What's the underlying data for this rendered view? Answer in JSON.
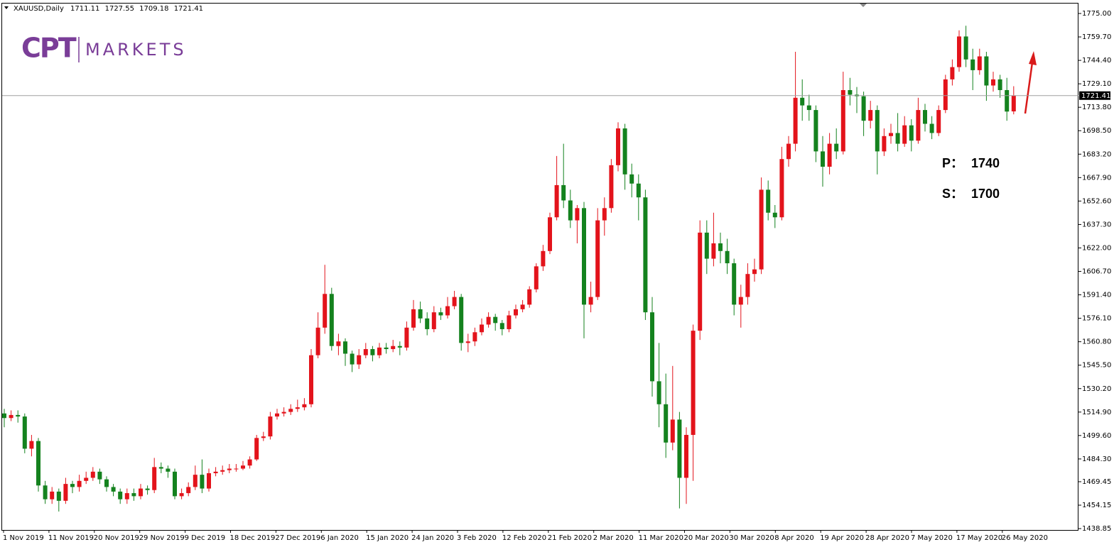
{
  "chart_data": {
    "type": "candlestick",
    "symbol": "XAUUSD,Daily",
    "logo": {
      "mark": "CPT",
      "name": "MARKETS"
    },
    "up_color": "#e3131b",
    "down_color": "#14821e",
    "ylim": [
      1437.96,
      1781.48
    ],
    "yticks": [
      {
        "value": 1775.0,
        "label": "1775.00"
      },
      {
        "value": 1759.7,
        "label": "1759.70"
      },
      {
        "value": 1744.4,
        "label": "1744.40"
      },
      {
        "value": 1729.1,
        "label": "1729.10"
      },
      {
        "value": 1713.8,
        "label": "1713.80"
      },
      {
        "value": 1698.5,
        "label": "1698.50"
      },
      {
        "value": 1683.2,
        "label": "1683.20"
      },
      {
        "value": 1667.9,
        "label": "1667.90"
      },
      {
        "value": 1652.6,
        "label": "1652.60"
      },
      {
        "value": 1637.3,
        "label": "1637.30"
      },
      {
        "value": 1622.0,
        "label": "1622.00"
      },
      {
        "value": 1606.7,
        "label": "1606.70"
      },
      {
        "value": 1591.4,
        "label": "1591.40"
      },
      {
        "value": 1576.1,
        "label": "1576.10"
      },
      {
        "value": 1560.8,
        "label": "1560.80"
      },
      {
        "value": 1545.5,
        "label": "1545.50"
      },
      {
        "value": 1530.2,
        "label": "1530.20"
      },
      {
        "value": 1514.9,
        "label": "1514.90"
      },
      {
        "value": 1499.6,
        "label": "1499.60"
      },
      {
        "value": 1484.3,
        "label": "1484.30"
      },
      {
        "value": 1469.45,
        "label": "1469.45"
      },
      {
        "value": 1454.15,
        "label": "1454.15"
      },
      {
        "value": 1438.85,
        "label": "1438.85"
      }
    ],
    "x_labels": [
      "1 Nov 2019",
      "11 Nov 2019",
      "20 Nov 2019",
      "29 Nov 2019",
      "9 Dec 2019",
      "18 Dec 2019",
      "27 Dec 2019",
      "6 Jan 2020",
      "15 Jan 2020",
      "24 Jan 2020",
      "3 Feb 2020",
      "12 Feb 2020",
      "21 Feb 2020",
      "2 Mar 2020",
      "11 Mar 2020",
      "20 Mar 2020",
      "30 Mar 2020",
      "8 Apr 2020",
      "19 Apr 2020",
      "28 Apr 2020",
      "7 May 2020",
      "17 May 2020",
      "26 May 2020"
    ],
    "annotations": [
      {
        "label": "P：",
        "value": 1740
      },
      {
        "label": "S：",
        "value": 1700
      }
    ],
    "candles": [
      [
        1514,
        1517,
        1505,
        1511
      ],
      [
        1511,
        1516,
        1509,
        1513
      ],
      [
        1513,
        1516,
        1508,
        1512
      ],
      [
        1512,
        1514,
        1488,
        1491
      ],
      [
        1491,
        1500,
        1486,
        1496
      ],
      [
        1496,
        1498,
        1463,
        1467
      ],
      [
        1467,
        1470,
        1455,
        1458
      ],
      [
        1458,
        1466,
        1455,
        1463
      ],
      [
        1463,
        1465,
        1450,
        1457
      ],
      [
        1457,
        1472,
        1455,
        1468
      ],
      [
        1468,
        1470,
        1462,
        1466
      ],
      [
        1466,
        1474,
        1463,
        1470
      ],
      [
        1470,
        1476,
        1468,
        1472
      ],
      [
        1472,
        1479,
        1470,
        1476
      ],
      [
        1476,
        1478,
        1468,
        1471
      ],
      [
        1471,
        1473,
        1463,
        1466
      ],
      [
        1466,
        1468,
        1460,
        1463
      ],
      [
        1463,
        1465,
        1455,
        1458
      ],
      [
        1458,
        1465,
        1455,
        1462
      ],
      [
        1462,
        1465,
        1457,
        1460
      ],
      [
        1460,
        1468,
        1458,
        1465
      ],
      [
        1465,
        1467,
        1461,
        1464
      ],
      [
        1464,
        1485,
        1462,
        1479
      ],
      [
        1479,
        1482,
        1475,
        1478
      ],
      [
        1478,
        1480,
        1472,
        1476
      ],
      [
        1476,
        1478,
        1458,
        1460
      ],
      [
        1460,
        1465,
        1458,
        1462
      ],
      [
        1462,
        1469,
        1460,
        1466
      ],
      [
        1466,
        1480,
        1464,
        1474
      ],
      [
        1474,
        1484,
        1462,
        1465
      ],
      [
        1465,
        1478,
        1463,
        1475
      ],
      [
        1475,
        1479,
        1473,
        1476
      ],
      [
        1476,
        1480,
        1474,
        1477
      ],
      [
        1477,
        1481,
        1475,
        1478
      ],
      [
        1478,
        1481,
        1476,
        1478
      ],
      [
        1478,
        1483,
        1477,
        1480
      ],
      [
        1480,
        1486,
        1478,
        1484
      ],
      [
        1484,
        1500,
        1483,
        1498
      ],
      [
        1498,
        1502,
        1496,
        1499
      ],
      [
        1499,
        1515,
        1497,
        1512
      ],
      [
        1512,
        1517,
        1510,
        1514
      ],
      [
        1514,
        1518,
        1512,
        1515
      ],
      [
        1515,
        1520,
        1513,
        1517
      ],
      [
        1517,
        1523,
        1515,
        1518
      ],
      [
        1518,
        1524,
        1516,
        1520
      ],
      [
        1520,
        1556,
        1518,
        1552
      ],
      [
        1552,
        1580,
        1550,
        1570
      ],
      [
        1570,
        1611,
        1566,
        1592
      ],
      [
        1592,
        1596,
        1555,
        1558
      ],
      [
        1558,
        1566,
        1552,
        1561
      ],
      [
        1561,
        1563,
        1545,
        1553
      ],
      [
        1553,
        1555,
        1541,
        1546
      ],
      [
        1546,
        1556,
        1543,
        1552
      ],
      [
        1552,
        1560,
        1550,
        1556
      ],
      [
        1556,
        1558,
        1548,
        1552
      ],
      [
        1552,
        1560,
        1550,
        1557
      ],
      [
        1557,
        1560,
        1553,
        1556
      ],
      [
        1556,
        1562,
        1554,
        1558
      ],
      [
        1558,
        1561,
        1552,
        1557
      ],
      [
        1557,
        1574,
        1555,
        1570
      ],
      [
        1570,
        1588,
        1568,
        1582
      ],
      [
        1582,
        1587,
        1573,
        1576
      ],
      [
        1576,
        1580,
        1565,
        1569
      ],
      [
        1569,
        1584,
        1567,
        1580
      ],
      [
        1580,
        1583,
        1575,
        1578
      ],
      [
        1578,
        1590,
        1576,
        1584
      ],
      [
        1584,
        1594,
        1582,
        1590
      ],
      [
        1590,
        1592,
        1555,
        1560
      ],
      [
        1560,
        1566,
        1554,
        1561
      ],
      [
        1561,
        1570,
        1558,
        1567
      ],
      [
        1567,
        1576,
        1565,
        1572
      ],
      [
        1572,
        1580,
        1570,
        1577
      ],
      [
        1577,
        1579,
        1568,
        1573
      ],
      [
        1573,
        1575,
        1565,
        1569
      ],
      [
        1569,
        1581,
        1567,
        1578
      ],
      [
        1578,
        1585,
        1576,
        1582
      ],
      [
        1582,
        1588,
        1580,
        1585
      ],
      [
        1585,
        1597,
        1583,
        1595
      ],
      [
        1595,
        1612,
        1593,
        1610
      ],
      [
        1610,
        1624,
        1607,
        1620
      ],
      [
        1620,
        1645,
        1618,
        1642
      ],
      [
        1642,
        1682,
        1640,
        1663
      ],
      [
        1663,
        1690,
        1648,
        1653
      ],
      [
        1653,
        1660,
        1635,
        1640
      ],
      [
        1640,
        1650,
        1625,
        1648
      ],
      [
        1648,
        1652,
        1563,
        1585
      ],
      [
        1585,
        1600,
        1580,
        1590
      ],
      [
        1590,
        1648,
        1588,
        1640
      ],
      [
        1640,
        1655,
        1630,
        1648
      ],
      [
        1648,
        1680,
        1645,
        1676
      ],
      [
        1676,
        1704,
        1672,
        1700
      ],
      [
        1700,
        1703,
        1660,
        1670
      ],
      [
        1670,
        1677,
        1655,
        1664
      ],
      [
        1664,
        1670,
        1640,
        1655
      ],
      [
        1655,
        1660,
        1575,
        1580
      ],
      [
        1580,
        1590,
        1525,
        1535
      ],
      [
        1535,
        1560,
        1505,
        1520
      ],
      [
        1520,
        1540,
        1485,
        1495
      ],
      [
        1495,
        1545,
        1490,
        1510
      ],
      [
        1510,
        1515,
        1452,
        1472
      ],
      [
        1472,
        1505,
        1455,
        1500
      ],
      [
        1500,
        1572,
        1470,
        1568
      ],
      [
        1568,
        1640,
        1562,
        1632
      ],
      [
        1632,
        1640,
        1605,
        1615
      ],
      [
        1615,
        1645,
        1610,
        1625
      ],
      [
        1625,
        1632,
        1612,
        1620
      ],
      [
        1620,
        1628,
        1605,
        1612
      ],
      [
        1612,
        1615,
        1578,
        1585
      ],
      [
        1585,
        1598,
        1570,
        1590
      ],
      [
        1590,
        1612,
        1585,
        1605
      ],
      [
        1605,
        1615,
        1600,
        1608
      ],
      [
        1608,
        1668,
        1605,
        1660
      ],
      [
        1660,
        1666,
        1640,
        1645
      ],
      [
        1645,
        1650,
        1635,
        1642
      ],
      [
        1642,
        1688,
        1640,
        1680
      ],
      [
        1680,
        1695,
        1675,
        1690
      ],
      [
        1690,
        1750,
        1685,
        1720
      ],
      [
        1720,
        1732,
        1705,
        1715
      ],
      [
        1715,
        1722,
        1705,
        1712
      ],
      [
        1712,
        1715,
        1678,
        1685
      ],
      [
        1685,
        1695,
        1662,
        1675
      ],
      [
        1675,
        1697,
        1670,
        1690
      ],
      [
        1690,
        1700,
        1680,
        1685
      ],
      [
        1685,
        1737,
        1683,
        1725
      ],
      [
        1725,
        1733,
        1715,
        1722
      ],
      [
        1722,
        1727,
        1710,
        1721
      ],
      [
        1721,
        1724,
        1695,
        1705
      ],
      [
        1705,
        1718,
        1700,
        1712
      ],
      [
        1712,
        1715,
        1670,
        1685
      ],
      [
        1685,
        1700,
        1682,
        1695
      ],
      [
        1695,
        1703,
        1690,
        1697
      ],
      [
        1697,
        1710,
        1685,
        1690
      ],
      [
        1690,
        1708,
        1688,
        1702
      ],
      [
        1702,
        1706,
        1685,
        1692
      ],
      [
        1692,
        1720,
        1690,
        1712
      ],
      [
        1712,
        1716,
        1698,
        1703
      ],
      [
        1703,
        1708,
        1693,
        1697
      ],
      [
        1697,
        1715,
        1695,
        1712
      ],
      [
        1712,
        1735,
        1710,
        1732
      ],
      [
        1732,
        1745,
        1728,
        1740
      ],
      [
        1740,
        1764,
        1737,
        1760
      ],
      [
        1760,
        1767,
        1740,
        1745
      ],
      [
        1745,
        1752,
        1725,
        1738
      ],
      [
        1738,
        1752,
        1735,
        1747
      ],
      [
        1747,
        1750,
        1718,
        1728
      ],
      [
        1728,
        1737,
        1724,
        1732
      ],
      [
        1732,
        1735,
        1720,
        1725
      ],
      [
        1725,
        1733,
        1705,
        1711
      ],
      [
        1711.11,
        1727.55,
        1709.18,
        1721.41
      ]
    ]
  }
}
